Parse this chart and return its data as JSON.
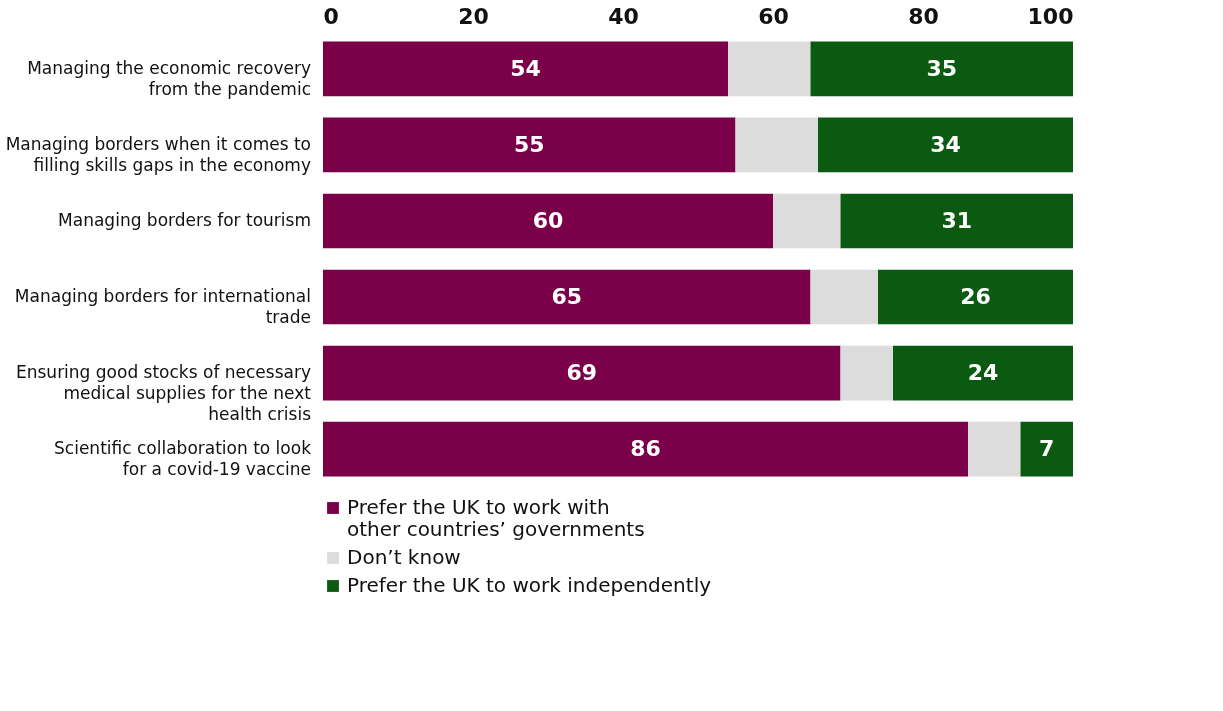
{
  "chart_data": {
    "type": "bar",
    "orientation": "horizontal",
    "stacked": true,
    "categories": [
      "Managing the economic recovery from the pandemic",
      "Managing borders when it comes to filling skills gaps in the economy",
      "Managing borders for tourism",
      "Managing borders for international trade",
      "Ensuring good stocks of necessary medical supplies for the next health crisis",
      "Scientific collaboration to look for a covid-19 vaccine"
    ],
    "series": [
      {
        "name": "Prefer the UK to work with other countries’ governments",
        "color": "#7a0049",
        "values": [
          54,
          55,
          60,
          65,
          69,
          86
        ],
        "value_labels": [
          "54",
          "55",
          "60",
          "65",
          "69",
          "86"
        ]
      },
      {
        "name": "Don’t know",
        "color": "#dcdcdc",
        "values": [
          11,
          11,
          9,
          9,
          7,
          7
        ]
      },
      {
        "name": "Prefer the UK to work independently",
        "color": "#0b5a12",
        "values": [
          35,
          34,
          31,
          26,
          24,
          7
        ],
        "value_labels": [
          "35",
          "34",
          "31",
          "26",
          "24",
          "7"
        ]
      }
    ],
    "xlim": [
      0,
      100
    ],
    "xticks": [
      0,
      20,
      40,
      60,
      80,
      100
    ],
    "grid": false,
    "legend": "bottom"
  }
}
